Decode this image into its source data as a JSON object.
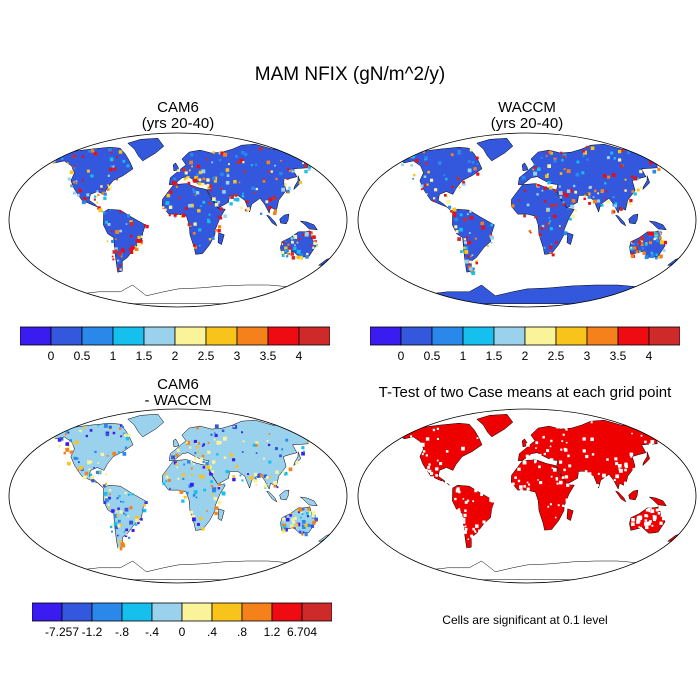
{
  "figure_title": "MAM NFIX (gN/m^2/y)",
  "panels": [
    {
      "title": "CAM6",
      "subtitle": "(yrs 20-40)",
      "kind": "field",
      "antarctica": "partial"
    },
    {
      "title": "WACCM",
      "subtitle": "(yrs 20-40)",
      "kind": "field",
      "antarctica": "filled"
    },
    {
      "title": "CAM6",
      "subtitle": "- WACCM",
      "kind": "difference"
    },
    {
      "title": "T-Test of two Case means at each grid point",
      "subtitle": "",
      "kind": "ttest"
    }
  ],
  "colorbar_field": {
    "colors": [
      "#3a1cf0",
      "#3358de",
      "#2a88ea",
      "#15c0ee",
      "#9ad2ee",
      "#fbf39a",
      "#f8c31b",
      "#f5811b",
      "#ee0b12",
      "#cf2a2a"
    ],
    "labels": [
      "0",
      "0.5",
      "1",
      "1.5",
      "2",
      "2.5",
      "3",
      "3.5",
      "4"
    ]
  },
  "colorbar_diff": {
    "colors": [
      "#3a1cf0",
      "#3358de",
      "#2a88ea",
      "#15c0ee",
      "#9ad2ee",
      "#fbf39a",
      "#f8c31b",
      "#f5811b",
      "#ee0b12",
      "#cf2a2a"
    ],
    "labels": [
      "-7.257",
      "-1.2",
      "-.8",
      "-.4",
      "0",
      ".4",
      ".8",
      "1.2",
      "6.704"
    ]
  },
  "ttest_note": "Cells are significant at 0.1 level",
  "ttest_color": "#ee0000"
}
